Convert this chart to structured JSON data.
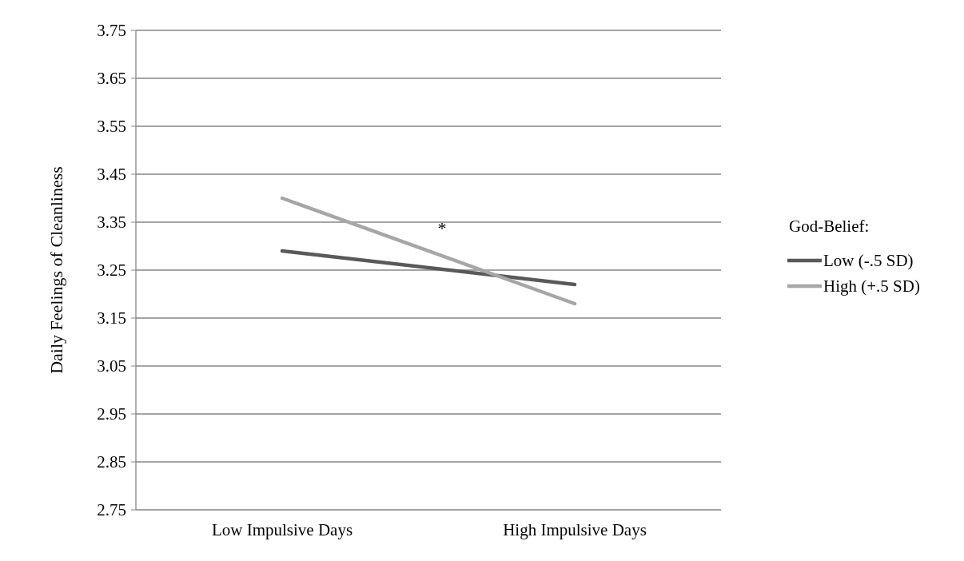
{
  "chart_data": {
    "type": "line",
    "ylabel": "Daily Feelings of Cleanliness",
    "categories": [
      "Low Impulsive Days",
      "High Impulsive Days"
    ],
    "series": [
      {
        "name": "Low (-.5 SD)",
        "color": "#595959",
        "values": [
          3.29,
          3.22
        ]
      },
      {
        "name": "High (+.5 SD)",
        "color": "#a6a6a6",
        "values": [
          3.4,
          3.18
        ]
      }
    ],
    "ylim": [
      2.75,
      3.75
    ],
    "yticks": [
      {
        "value": 2.75,
        "label": "2.75"
      },
      {
        "value": 2.85,
        "label": "2.85"
      },
      {
        "value": 2.95,
        "label": "2.95"
      },
      {
        "value": 3.05,
        "label": "3.05"
      },
      {
        "value": 3.15,
        "label": "3.15"
      },
      {
        "value": 3.25,
        "label": "3.25"
      },
      {
        "value": 3.35,
        "label": "3.35"
      },
      {
        "value": 3.45,
        "label": "3.45"
      },
      {
        "value": 3.55,
        "label": "3.55"
      },
      {
        "value": 3.65,
        "label": "3.65"
      },
      {
        "value": 3.75,
        "label": "3.75"
      }
    ],
    "grid": "y",
    "legend": "right",
    "legend_title": "God-Belief:",
    "marker": "none",
    "line_style": "solid",
    "annotations": [
      "*"
    ]
  }
}
